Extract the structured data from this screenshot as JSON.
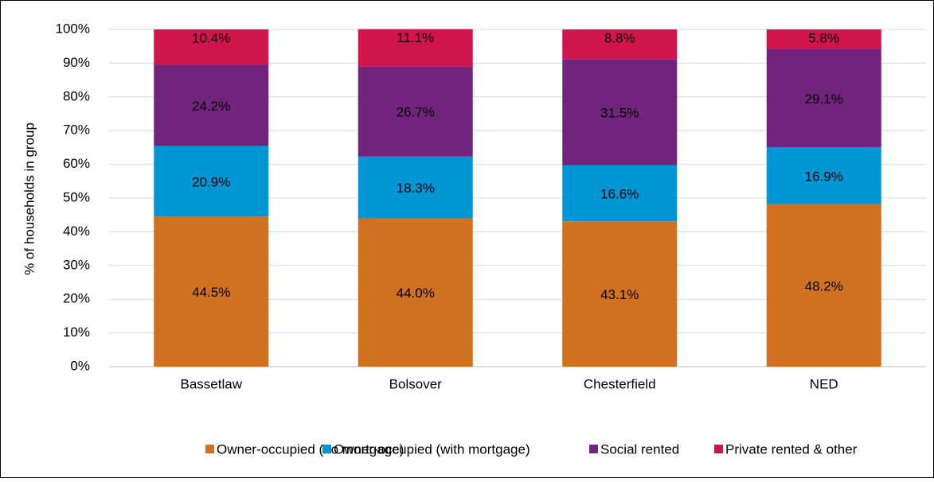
{
  "chart_data": {
    "type": "stacked_bar",
    "y_label": "% of households in group",
    "categories": [
      "Bassetlaw",
      "Bolsover",
      "Chesterfield",
      "NED"
    ],
    "series": [
      {
        "name": "Owner-occupied (no mortgage)",
        "color": "#d0711f",
        "values": [
          44.5,
          44.0,
          43.1,
          48.2
        ],
        "value_labels": [
          "44.5%",
          "44.0%",
          "43.1%",
          "48.2%"
        ]
      },
      {
        "name": "Owner-occupied (with mortgage)",
        "color": "#0096d6",
        "values": [
          20.9,
          18.3,
          16.6,
          16.9
        ],
        "value_labels": [
          "20.9%",
          "18.3%",
          "16.6%",
          "16.9%"
        ]
      },
      {
        "name": "Social rented",
        "color": "#70247b",
        "values": [
          24.2,
          26.7,
          31.5,
          29.1
        ],
        "value_labels": [
          "24.2%",
          "26.7%",
          "31.5%",
          "29.1%"
        ]
      },
      {
        "name": "Private rented & other",
        "color": "#d1144b",
        "values": [
          10.4,
          11.1,
          8.8,
          5.8
        ],
        "value_labels": [
          "10.4%",
          "11.1%",
          "8.8%",
          "5.8%"
        ]
      }
    ],
    "ylim": [
      0,
      100
    ],
    "yticks": [
      {
        "value": 0,
        "label": "0%"
      },
      {
        "value": 10,
        "label": "10%"
      },
      {
        "value": 20,
        "label": "20%"
      },
      {
        "value": 30,
        "label": "30%"
      },
      {
        "value": 40,
        "label": "40%"
      },
      {
        "value": 50,
        "label": "50%"
      },
      {
        "value": 60,
        "label": "60%"
      },
      {
        "value": 70,
        "label": "70%"
      },
      {
        "value": 80,
        "label": "80%"
      },
      {
        "value": 90,
        "label": "90%"
      },
      {
        "value": 100,
        "label": "100%"
      }
    ],
    "grid": true,
    "legend": "bottom"
  }
}
